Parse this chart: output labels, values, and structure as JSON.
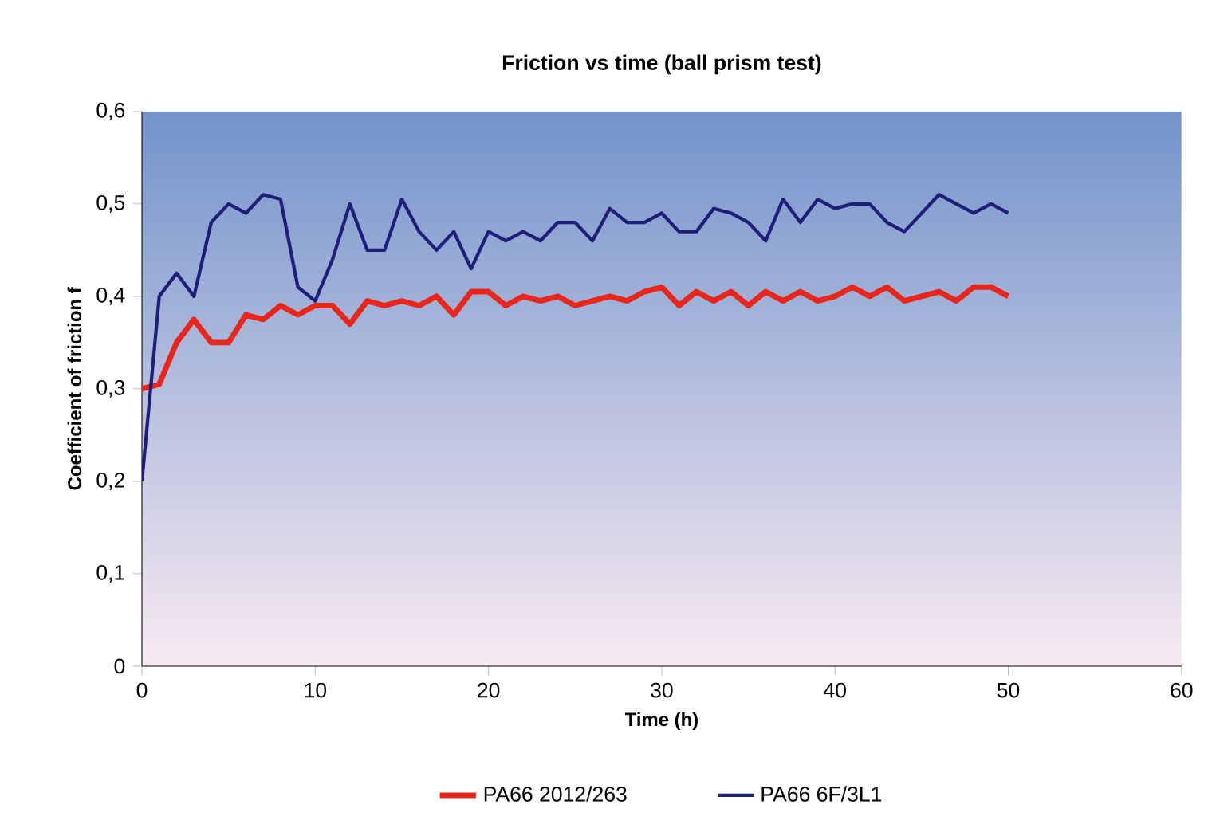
{
  "chart_data": {
    "type": "line",
    "title": "Friction vs time (ball prism test)",
    "xlabel": "Time (h)",
    "ylabel": "Coefficient of friction f",
    "xlim": [
      0,
      60
    ],
    "xticks": [
      0,
      10,
      20,
      30,
      40,
      50,
      60
    ],
    "ylim": [
      0,
      0.6
    ],
    "yticks": [
      {
        "value": 0,
        "label": "0"
      },
      {
        "value": 0.1,
        "label": "0,1"
      },
      {
        "value": 0.2,
        "label": "0,2"
      },
      {
        "value": 0.3,
        "label": "0,3"
      },
      {
        "value": 0.4,
        "label": "0,4"
      },
      {
        "value": 0.5,
        "label": "0,5"
      },
      {
        "value": 0.6,
        "label": "0,6"
      }
    ],
    "grid": false,
    "legend": "bottom",
    "marker": "none",
    "line_style": "solid",
    "x": [
      0,
      1,
      2,
      3,
      4,
      5,
      6,
      7,
      8,
      9,
      10,
      11,
      12,
      13,
      14,
      15,
      16,
      17,
      18,
      19,
      20,
      21,
      22,
      23,
      24,
      25,
      26,
      27,
      28,
      29,
      30,
      31,
      32,
      33,
      34,
      35,
      36,
      37,
      38,
      39,
      40,
      41,
      42,
      43,
      44,
      45,
      46,
      47,
      48,
      49,
      50
    ],
    "series": [
      {
        "name": "PA66 2012/263",
        "color": "#e8261b",
        "values": [
          0.3,
          0.305,
          0.35,
          0.375,
          0.35,
          0.35,
          0.38,
          0.375,
          0.39,
          0.38,
          0.39,
          0.39,
          0.37,
          0.395,
          0.39,
          0.395,
          0.39,
          0.4,
          0.38,
          0.405,
          0.405,
          0.39,
          0.4,
          0.395,
          0.4,
          0.39,
          0.395,
          0.4,
          0.395,
          0.405,
          0.41,
          0.39,
          0.405,
          0.395,
          0.405,
          0.39,
          0.405,
          0.395,
          0.405,
          0.395,
          0.4,
          0.41,
          0.4,
          0.41,
          0.395,
          0.4,
          0.405,
          0.395,
          0.41,
          0.41,
          0.4
        ]
      },
      {
        "name": "PA66 6F/3L1",
        "color": "#1f1f7a",
        "values": [
          0.2,
          0.4,
          0.425,
          0.4,
          0.48,
          0.5,
          0.49,
          0.51,
          0.505,
          0.41,
          0.395,
          0.44,
          0.5,
          0.45,
          0.45,
          0.505,
          0.47,
          0.45,
          0.47,
          0.43,
          0.47,
          0.46,
          0.47,
          0.46,
          0.48,
          0.48,
          0.46,
          0.495,
          0.48,
          0.48,
          0.49,
          0.47,
          0.47,
          0.495,
          0.49,
          0.48,
          0.46,
          0.505,
          0.48,
          0.505,
          0.495,
          0.5,
          0.5,
          0.48,
          0.47,
          0.49,
          0.51,
          0.5,
          0.49,
          0.5,
          0.49
        ]
      }
    ]
  }
}
